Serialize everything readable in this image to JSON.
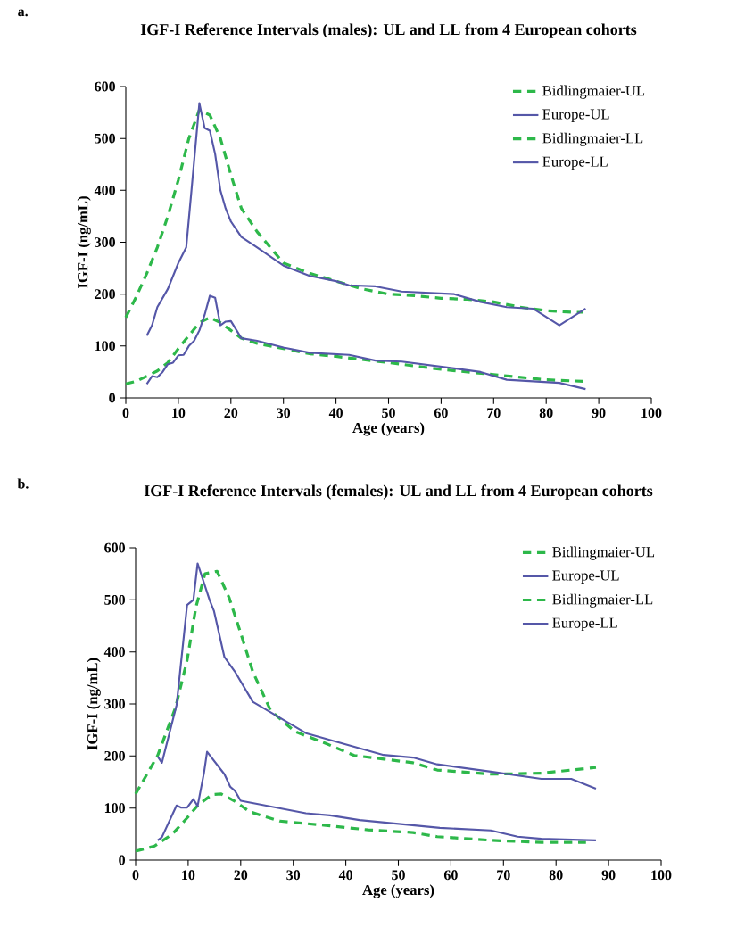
{
  "chart_data": [
    {
      "type": "line",
      "title": "IGF-I Reference Intervals (males): UL and LL from 4 European cohorts",
      "xlabel": "Age (years)",
      "ylabel": "IGF-I (ng/mL)",
      "annotations": [
        "a."
      ],
      "xlim": [
        0,
        100
      ],
      "ylim": [
        0,
        600
      ],
      "xticks": [
        0,
        10,
        20,
        30,
        40,
        50,
        60,
        70,
        80,
        90,
        100
      ],
      "yticks": [
        0,
        100,
        200,
        300,
        400,
        500,
        600
      ],
      "legend": "top right",
      "marker": "none",
      "series": [
        {
          "name": "Bidlingmaier-UL",
          "color": "#2db84a",
          "line_style": "dashed",
          "x": [
            0,
            2,
            4,
            6,
            8,
            10,
            12,
            14,
            16,
            18,
            20,
            22,
            25,
            30,
            35,
            40,
            45,
            50,
            55,
            60,
            65,
            70,
            75,
            80,
            85,
            87
          ],
          "values": [
            155,
            195,
            240,
            290,
            350,
            420,
            500,
            555,
            545,
            500,
            430,
            365,
            320,
            260,
            240,
            225,
            210,
            200,
            197,
            192,
            190,
            185,
            175,
            168,
            165,
            165
          ]
        },
        {
          "name": "Europe-UL",
          "color": "#5557a8",
          "line_style": "solid",
          "x": [
            4,
            5,
            6,
            8,
            10,
            11.5,
            12.5,
            14,
            15,
            16,
            17,
            18,
            19,
            20,
            22,
            25,
            30,
            35,
            40,
            42.5,
            47.5,
            52.5,
            62.5,
            67.5,
            72.5,
            77.5,
            82.5,
            87.5
          ],
          "values": [
            120,
            140,
            175,
            210,
            260,
            290,
            400,
            568,
            520,
            515,
            470,
            400,
            365,
            340,
            310,
            290,
            255,
            235,
            225,
            217,
            215,
            205,
            200,
            185,
            175,
            172,
            140,
            172
          ]
        },
        {
          "name": "Bidlingmaier-LL",
          "color": "#2db84a",
          "line_style": "dashed",
          "x": [
            0,
            2,
            4,
            6,
            8,
            10,
            12,
            14,
            16,
            18,
            20,
            22,
            25,
            30,
            35,
            40,
            50,
            60,
            70,
            80,
            87
          ],
          "values": [
            27,
            32,
            42,
            52,
            68,
            95,
            120,
            145,
            155,
            145,
            130,
            115,
            105,
            95,
            85,
            80,
            68,
            55,
            45,
            35,
            32
          ]
        },
        {
          "name": "Europe-LL",
          "color": "#5557a8",
          "line_style": "solid",
          "x": [
            4,
            5,
            6,
            7,
            8,
            9,
            10,
            11,
            12,
            13,
            14,
            15,
            16,
            17,
            18,
            19,
            20,
            22,
            25,
            30,
            35,
            42.5,
            47.5,
            52.5,
            62.5,
            67.5,
            72.5,
            82.5,
            87.5
          ],
          "values": [
            27,
            42,
            40,
            50,
            65,
            68,
            82,
            83,
            100,
            110,
            130,
            160,
            197,
            193,
            140,
            147,
            148,
            115,
            110,
            97,
            87,
            83,
            72,
            70,
            57,
            50,
            35,
            29,
            17
          ]
        }
      ]
    },
    {
      "type": "line",
      "title": "IGF-I Reference Intervals (females): UL and LL from 4 European cohorts",
      "xlabel": "Age (years)",
      "ylabel": "IGF-I (ng/mL)",
      "annotations": [
        "b."
      ],
      "xlim": [
        0,
        100
      ],
      "ylim": [
        0,
        600
      ],
      "xticks": [
        0,
        10,
        20,
        30,
        40,
        50,
        60,
        70,
        80,
        90,
        100
      ],
      "yticks": [
        0,
        100,
        200,
        300,
        400,
        500,
        600
      ],
      "legend": "top right",
      "marker": "none",
      "series": [
        {
          "name": "Bidlingmaier-UL",
          "color": "#2db84a",
          "line_style": "dashed",
          "x": [
            0,
            4.2,
            7.6,
            9.8,
            11.5,
            13.2,
            15.5,
            17.8,
            20,
            22.3,
            25.7,
            30.3,
            36,
            41.6,
            52.8,
            57.4,
            67.6,
            77.2,
            87.6
          ],
          "values": [
            127,
            201,
            293,
            384,
            487,
            550,
            555,
            504,
            436,
            362,
            287,
            247,
            225,
            201,
            187,
            173,
            165,
            167,
            178
          ]
        },
        {
          "name": "Europe-UL",
          "color": "#5557a8",
          "line_style": "solid",
          "x": [
            4.2,
            5,
            7.8,
            9.8,
            11,
            11.8,
            14.1,
            14.9,
            16.9,
            18.9,
            22.3,
            32.4,
            47.2,
            52.8,
            57.4,
            67.6,
            77.2,
            82.9,
            87.6
          ],
          "values": [
            199,
            187,
            298,
            490,
            500,
            570,
            499,
            479,
            390,
            362,
            304,
            244,
            202,
            197,
            184,
            170,
            156,
            156,
            137
          ]
        },
        {
          "name": "Bidlingmaier-LL",
          "color": "#2db84a",
          "line_style": "dashed",
          "x": [
            0,
            3.6,
            7,
            9.8,
            12,
            14.6,
            16.3,
            18.9,
            21.7,
            27.4,
            35.8,
            44.3,
            52.8,
            57.4,
            67.6,
            77.2,
            85.7
          ],
          "values": [
            17,
            27,
            50,
            81,
            107,
            126,
            127,
            113,
            93,
            75,
            67,
            58,
            53,
            45,
            38,
            34,
            34
          ]
        },
        {
          "name": "Europe-LL",
          "color": "#5557a8",
          "line_style": "solid",
          "x": [
            4.2,
            5,
            7.8,
            8.6,
            9.8,
            11,
            11.8,
            13,
            13.6,
            16.9,
            18,
            18.9,
            20,
            32.4,
            37,
            42.6,
            52.8,
            57.9,
            67.6,
            72.7,
            77.2,
            87.6
          ],
          "values": [
            38,
            44,
            105,
            101,
            101,
            117,
            104,
            167,
            208,
            165,
            141,
            133,
            114,
            90,
            86,
            77,
            67,
            62,
            57,
            45,
            41,
            38
          ]
        }
      ]
    }
  ]
}
